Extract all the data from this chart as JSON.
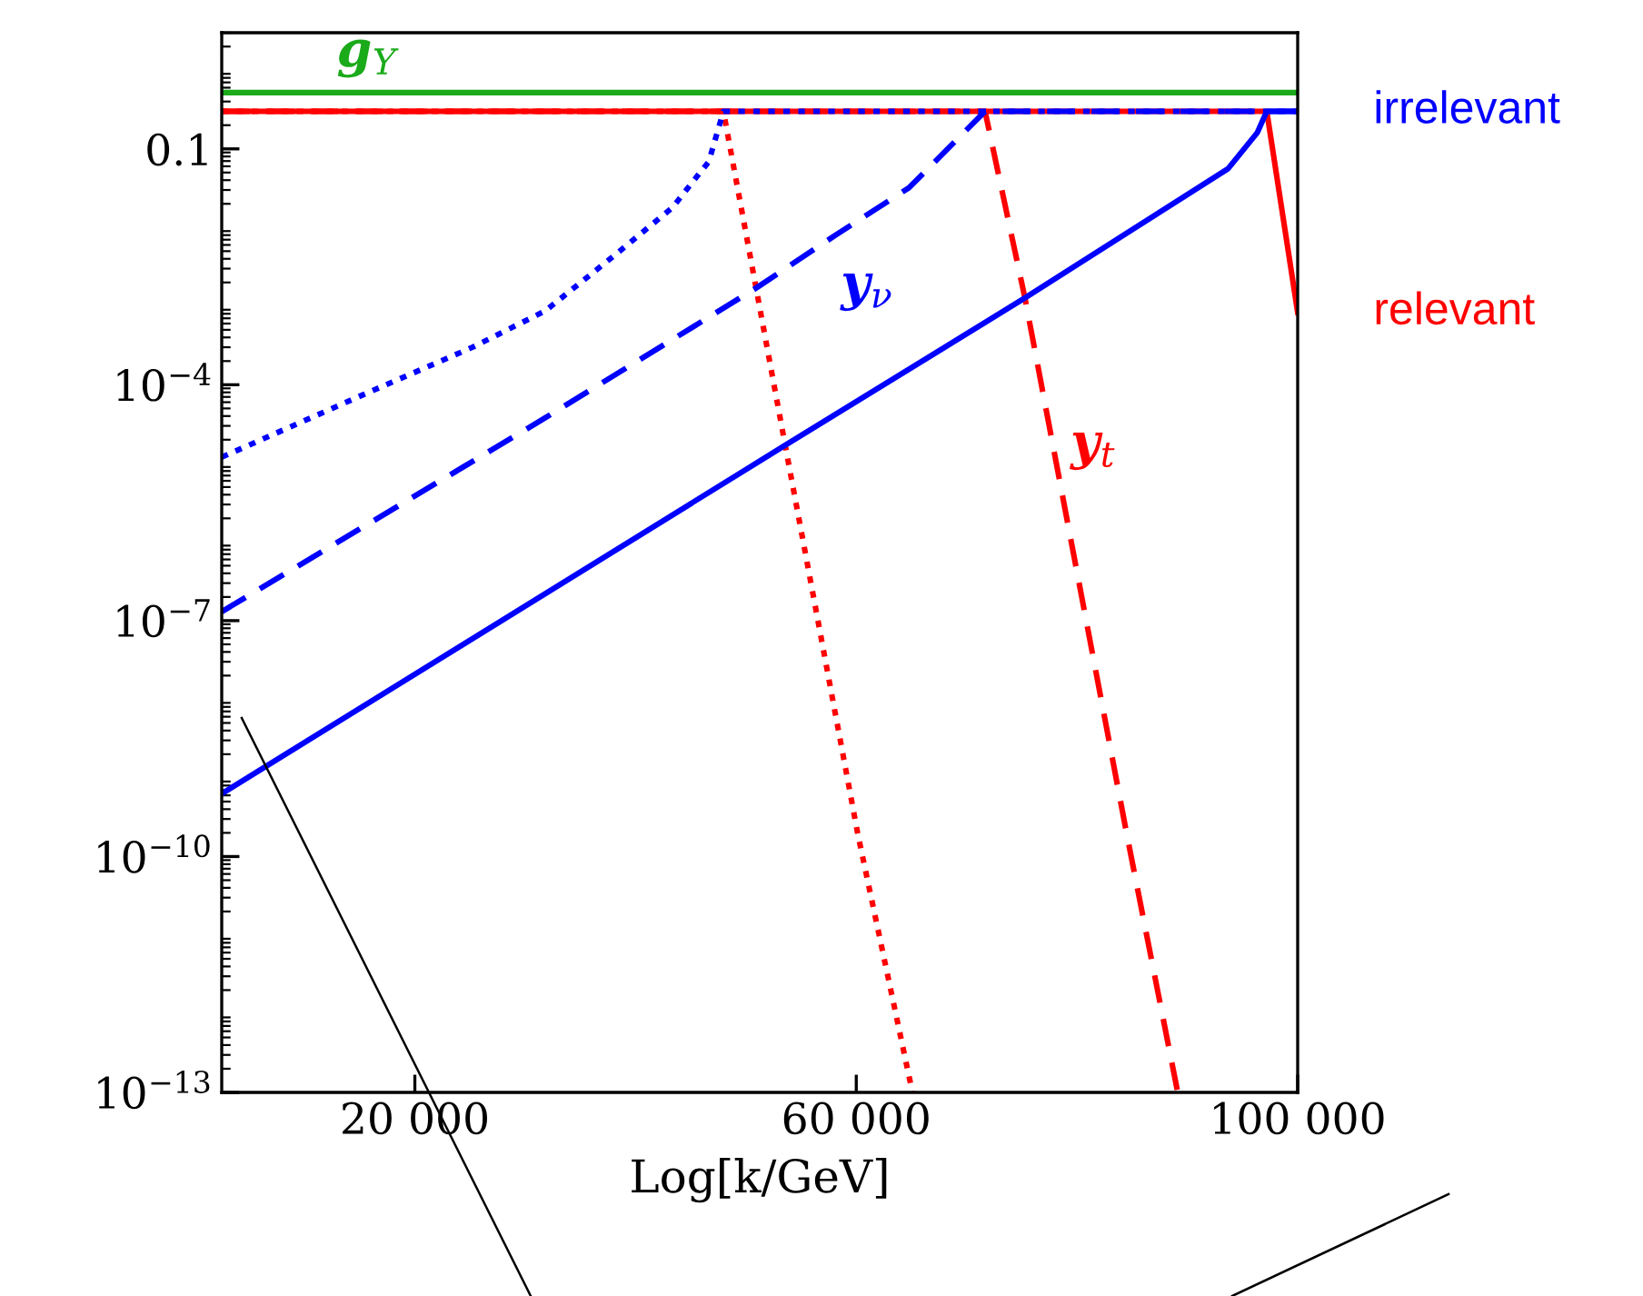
{
  "chart_data": {
    "type": "line",
    "xlabel": "Log[k/GeV]",
    "log": "y",
    "xlim": [
      2500,
      100000
    ],
    "xticks": [
      {
        "value": 20000,
        "label": "20 000"
      },
      {
        "value": 60000,
        "label": "60 000"
      },
      {
        "value": 100000,
        "label": "100 000"
      }
    ],
    "ylim": [
      1e-13,
      3
    ],
    "yticks": [
      {
        "value": 0.1,
        "label": "0.1"
      },
      {
        "value": 0.0001,
        "label": "10$^{−4}$"
      },
      {
        "value": 1e-07,
        "label": "10$^{−7}$"
      },
      {
        "value": 1e-10,
        "label": "10$^{−10}$"
      },
      {
        "value": 1e-13,
        "label": "10$^{−13}$"
      }
    ],
    "grid": false,
    "legend": false,
    "marker": "none",
    "series": [
      {
        "name": "g$_{Y}$",
        "color": "#1aaa1a",
        "line_style": "solid",
        "x": [
          2500,
          100000
        ],
        "values": [
          0.52,
          0.52
        ]
      },
      {
        "color": "#ff0000",
        "line_style": "dotted",
        "x": [
          2500,
          47960,
          53560,
          60150,
          65090
        ],
        "values": [
          0.3,
          0.3,
          1.7e-05,
          1.9e-10,
          1e-13
        ]
      },
      {
        "name": "y$_{t}$",
        "color": "#ff0000",
        "line_style": "dashed",
        "x": [
          2500,
          71670,
          75290,
          84520,
          89130
        ],
        "values": [
          0.3,
          0.3,
          0.00126,
          1.9e-10,
          1e-13
        ]
      },
      {
        "color": "#ff0000",
        "line_style": "solid",
        "x": [
          2500,
          97200,
          100000
        ],
        "values": [
          0.3,
          0.3,
          0.00083
        ]
      },
      {
        "color": "#0000ff",
        "line_style": "dotted",
        "x": [
          2500,
          15350,
          25230,
          31820,
          38410,
          43350,
          46640,
          47960,
          100000
        ],
        "values": [
          1.2e-05,
          7.5e-05,
          0.0003,
          0.00087,
          0.0048,
          0.018,
          0.069,
          0.3,
          0.3
        ]
      },
      {
        "name": "y$_{ν}$",
        "color": "#0000ff",
        "line_style": "dashed",
        "x": [
          2500,
          31820,
          50930,
          58180,
          64770,
          71670,
          100000
        ],
        "values": [
          1.3e-07,
          3.8e-05,
          0.0017,
          0.0081,
          0.032,
          0.3,
          0.3
        ]
      },
      {
        "color": "#0000ff",
        "line_style": "solid",
        "x": [
          2500,
          53560,
          75240,
          93690,
          96330,
          97200,
          100000
        ],
        "values": [
          6.3e-10,
          1.7e-05,
          0.00126,
          0.056,
          0.16,
          0.3,
          0.3
        ]
      }
    ],
    "annotations": [
      {
        "text": "irrelevant",
        "x": 100000,
        "y": 0.3
      },
      {
        "text": "relevant",
        "x": 100000,
        "y": 0.00083
      }
    ]
  }
}
